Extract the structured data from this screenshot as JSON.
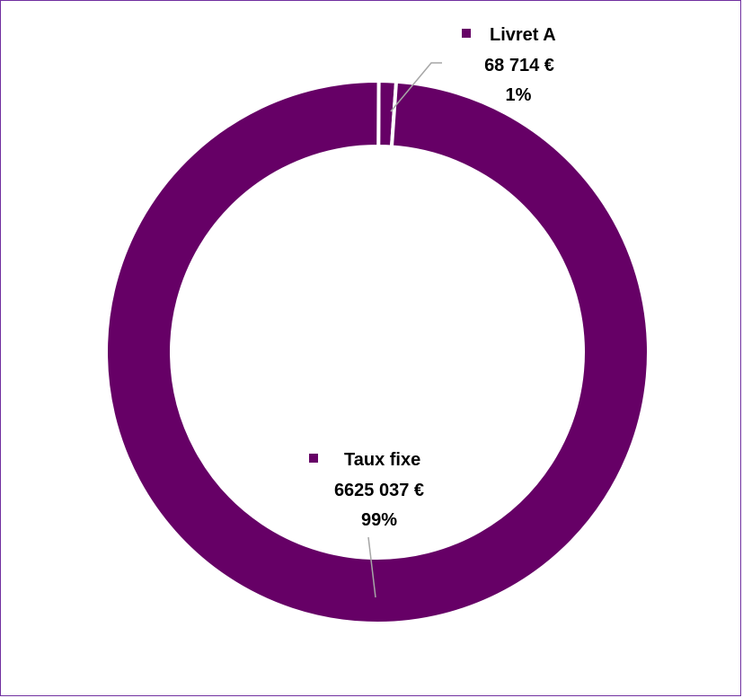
{
  "chart_data": {
    "type": "pie",
    "variant": "donut",
    "title": "",
    "legend": "none",
    "slices": [
      {
        "name": "Taux fixe",
        "value": 6625037,
        "value_label": "6625 037 €",
        "percent_label": "99%",
        "color": "#660066"
      },
      {
        "name": "Livret A",
        "value": 68714,
        "value_label": "68 714 €",
        "percent_label": "1%",
        "color": "#660066"
      }
    ]
  },
  "colors": {
    "border": "#7030a0",
    "separator": "#ffffff",
    "leader": "#a6a6a6"
  }
}
